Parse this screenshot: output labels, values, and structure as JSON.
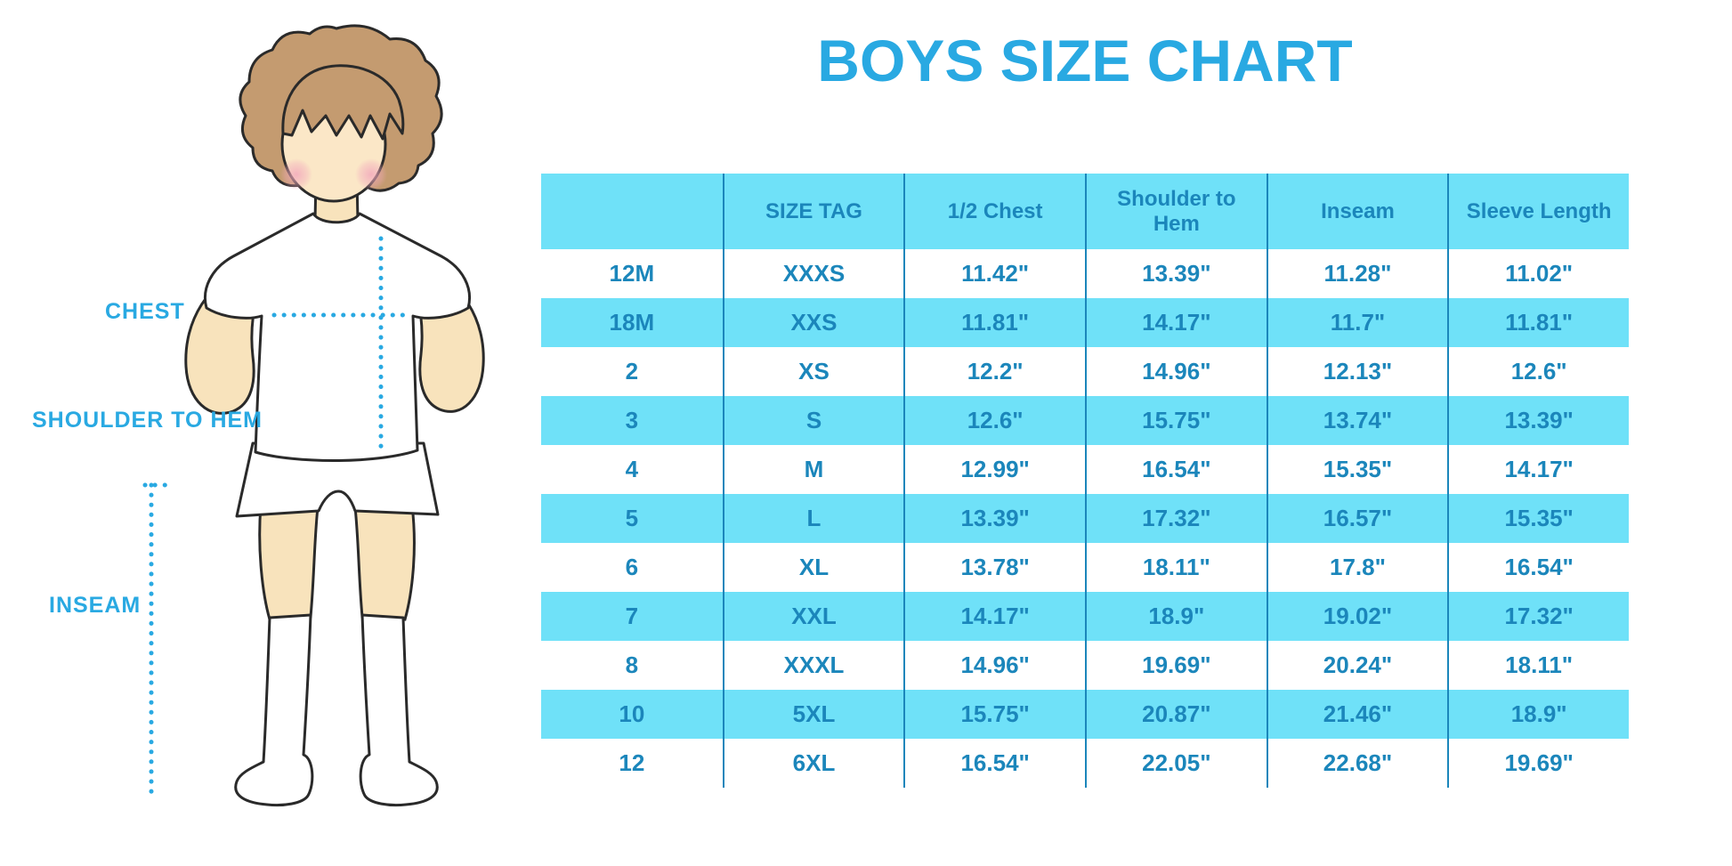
{
  "title": "BOYS SIZE CHART",
  "colors": {
    "accent_blue": "#29A9E2",
    "table_text_blue": "#1B86BB",
    "row_stripe_cyan": "#6FE1F8",
    "skin": "#F8E3BC",
    "hair_brown": "#C49B70"
  },
  "figure": {
    "labels": {
      "chest": "CHEST",
      "shoulder_to_hem": "SHOULDER TO HEM",
      "inseam": "INSEAM"
    }
  },
  "chart_data": {
    "type": "table",
    "title": "BOYS SIZE CHART",
    "columns": [
      "",
      "SIZE TAG",
      "1/2 Chest",
      "Shoulder to Hem",
      "Inseam",
      "Sleeve Length"
    ],
    "rows": [
      [
        "12M",
        "XXXS",
        "11.42\"",
        "13.39\"",
        "11.28\"",
        "11.02\""
      ],
      [
        "18M",
        "XXS",
        "11.81\"",
        "14.17\"",
        "11.7\"",
        "11.81\""
      ],
      [
        "2",
        "XS",
        "12.2\"",
        "14.96\"",
        "12.13\"",
        "12.6\""
      ],
      [
        "3",
        "S",
        "12.6\"",
        "15.75\"",
        "13.74\"",
        "13.39\""
      ],
      [
        "4",
        "M",
        "12.99\"",
        "16.54\"",
        "15.35\"",
        "14.17\""
      ],
      [
        "5",
        "L",
        "13.39\"",
        "17.32\"",
        "16.57\"",
        "15.35\""
      ],
      [
        "6",
        "XL",
        "13.78\"",
        "18.11\"",
        "17.8\"",
        "16.54\""
      ],
      [
        "7",
        "XXL",
        "14.17\"",
        "18.9\"",
        "19.02\"",
        "17.32\""
      ],
      [
        "8",
        "XXXL",
        "14.96\"",
        "19.69\"",
        "20.24\"",
        "18.11\""
      ],
      [
        "10",
        "5XL",
        "15.75\"",
        "20.87\"",
        "21.46\"",
        "18.9\""
      ],
      [
        "12",
        "6XL",
        "16.54\"",
        "22.05\"",
        "22.68\"",
        "19.69\""
      ]
    ],
    "units": "inches",
    "stripe_pattern": "header cyan, then alternating white/cyan starting white"
  }
}
